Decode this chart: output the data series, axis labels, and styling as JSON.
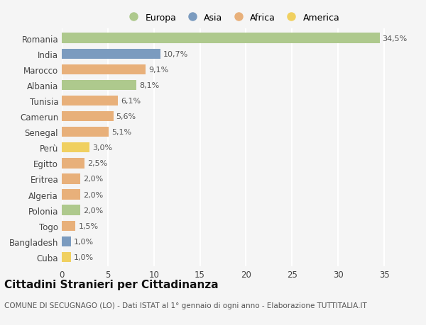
{
  "categories": [
    "Romania",
    "India",
    "Marocco",
    "Albania",
    "Tunisia",
    "Camerun",
    "Senegal",
    "Perù",
    "Egitto",
    "Eritrea",
    "Algeria",
    "Polonia",
    "Togo",
    "Bangladesh",
    "Cuba"
  ],
  "values": [
    34.5,
    10.7,
    9.1,
    8.1,
    6.1,
    5.6,
    5.1,
    3.0,
    2.5,
    2.0,
    2.0,
    2.0,
    1.5,
    1.0,
    1.0
  ],
  "labels": [
    "34,5%",
    "10,7%",
    "9,1%",
    "8,1%",
    "6,1%",
    "5,6%",
    "5,1%",
    "3,0%",
    "2,5%",
    "2,0%",
    "2,0%",
    "2,0%",
    "1,5%",
    "1,0%",
    "1,0%"
  ],
  "continents": [
    "Europa",
    "Asia",
    "Africa",
    "Europa",
    "Africa",
    "Africa",
    "Africa",
    "America",
    "Africa",
    "Africa",
    "Africa",
    "Europa",
    "Africa",
    "Asia",
    "America"
  ],
  "colors": {
    "Europa": "#aec98d",
    "Asia": "#7b9bbf",
    "Africa": "#e8b07a",
    "America": "#f0d060"
  },
  "legend_order": [
    "Europa",
    "Asia",
    "Africa",
    "America"
  ],
  "title": "Cittadini Stranieri per Cittadinanza",
  "subtitle": "COMUNE DI SECUGNAGO (LO) - Dati ISTAT al 1° gennaio di ogni anno - Elaborazione TUTTITALIA.IT",
  "xlim": [
    0,
    37
  ],
  "xticks": [
    0,
    5,
    10,
    15,
    20,
    25,
    30,
    35
  ],
  "background_color": "#f5f5f5",
  "grid_color": "#ffffff",
  "bar_height": 0.65,
  "title_fontsize": 11,
  "subtitle_fontsize": 7.5,
  "label_fontsize": 8,
  "tick_fontsize": 8.5
}
